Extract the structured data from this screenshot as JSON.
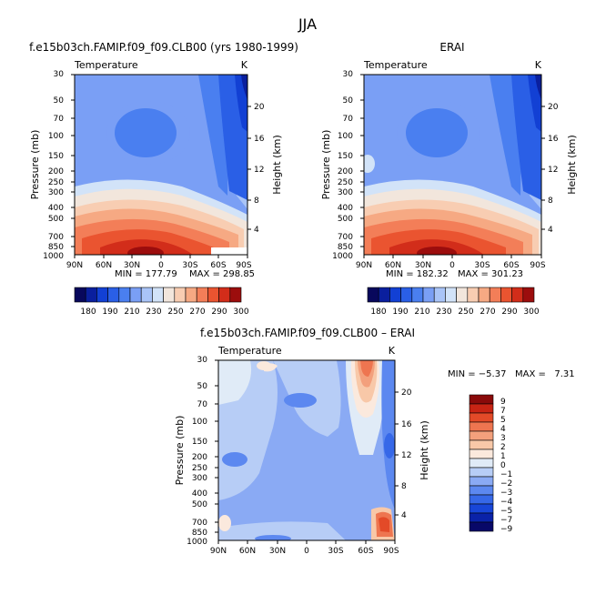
{
  "figure": {
    "title": "JJA"
  },
  "colors": {
    "temperature_scale": [
      "#08085c",
      "#0a1f9e",
      "#1240d4",
      "#2a5fe6",
      "#4a7ff0",
      "#7a9ff5",
      "#a9c4f7",
      "#d2e3f8",
      "#f2e6dc",
      "#f8cdb2",
      "#f6a983",
      "#f37e58",
      "#ea5430",
      "#d22d1a",
      "#9c0d0d"
    ],
    "difference_scale": [
      "#080868",
      "#0a22a8",
      "#1846d8",
      "#3668e8",
      "#5c88f0",
      "#8aaaf4",
      "#b7cdf6",
      "#e0ebf7",
      "#fbe9dd",
      "#f8c8a8",
      "#f3a07c",
      "#ee7550",
      "#e34a28",
      "#c82414",
      "#8a0a0a"
    ]
  },
  "chart_data": [
    {
      "type": "heatmap",
      "title": "f.e15b03ch.FAMIP.f09_f09.CLB00 (yrs 1980-1999)",
      "subtitle_left": "Temperature",
      "subtitle_right": "K",
      "xlabel": "",
      "ylabel": "Pressure (mb)",
      "ylabel_right": "Height (km)",
      "x_ticks": [
        "90N",
        "60N",
        "30N",
        "0",
        "30S",
        "60S",
        "90S"
      ],
      "y_ticks": [
        30,
        50,
        70,
        100,
        150,
        200,
        250,
        300,
        400,
        500,
        700,
        850,
        1000
      ],
      "y_scale": "log",
      "ylim": [
        1000,
        30
      ],
      "height_ticks": [
        4,
        8,
        12,
        16,
        20
      ],
      "min_text": "MIN = 177.79",
      "max_text": "MAX = 298.85",
      "min": 177.79,
      "max": 298.85,
      "colorbar": {
        "orientation": "horizontal",
        "labels": [
          "180",
          "190",
          "210",
          "230",
          "250",
          "270",
          "290",
          "300"
        ]
      }
    },
    {
      "type": "heatmap",
      "title": "ERAI",
      "subtitle_left": "Temperature",
      "subtitle_right": "K",
      "xlabel": "",
      "ylabel": "Pressure (mb)",
      "ylabel_right": "Height (km)",
      "x_ticks": [
        "90N",
        "60N",
        "30N",
        "0",
        "30S",
        "60S",
        "90S"
      ],
      "y_ticks": [
        30,
        50,
        70,
        100,
        150,
        200,
        250,
        300,
        400,
        500,
        700,
        850,
        1000
      ],
      "y_scale": "log",
      "ylim": [
        1000,
        30
      ],
      "height_ticks": [
        4,
        8,
        12,
        16,
        20
      ],
      "min_text": "MIN = 182.32",
      "max_text": "MAX = 301.23",
      "min": 182.32,
      "max": 301.23,
      "colorbar": {
        "orientation": "horizontal",
        "labels": [
          "180",
          "190",
          "210",
          "230",
          "250",
          "270",
          "290",
          "300"
        ]
      }
    },
    {
      "type": "heatmap",
      "title": "f.e15b03ch.FAMIP.f09_f09.CLB00 – ERAI",
      "subtitle_left": "Temperature",
      "subtitle_right": "K",
      "xlabel": "",
      "ylabel": "Pressure (mb)",
      "ylabel_right": "Height (km)",
      "x_ticks": [
        "90N",
        "60N",
        "30N",
        "0",
        "30S",
        "60S",
        "90S"
      ],
      "y_ticks": [
        30,
        50,
        70,
        100,
        150,
        200,
        250,
        300,
        400,
        500,
        700,
        850,
        1000
      ],
      "y_scale": "log",
      "ylim": [
        1000,
        30
      ],
      "height_ticks": [
        4,
        8,
        12,
        16,
        20
      ],
      "minmax_text": "MIN = −5.37   MAX =   7.31",
      "min": -5.37,
      "max": 7.31,
      "colorbar": {
        "orientation": "vertical",
        "labels": [
          "9",
          "7",
          "5",
          "4",
          "3",
          "2",
          "1",
          "0",
          "−1",
          "−2",
          "−3",
          "−4",
          "−5",
          "−7",
          "−9"
        ]
      }
    }
  ]
}
